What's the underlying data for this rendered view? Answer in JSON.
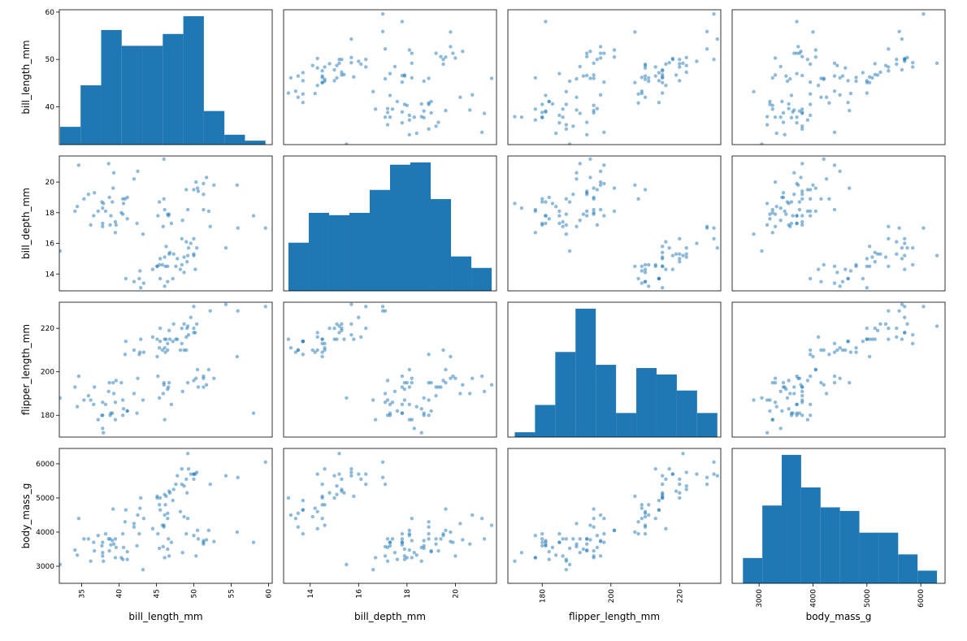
{
  "chart_data": {
    "type": "scatter_matrix",
    "color": "#1f77b4",
    "point_alpha": 0.5,
    "columns": [
      "bill_length_mm",
      "bill_depth_mm",
      "flipper_length_mm",
      "body_mass_g"
    ],
    "axes": [
      {
        "lim": [
          32.0,
          60.5
        ],
        "xticks": [
          35,
          40,
          45,
          50,
          55,
          60
        ],
        "yticks": [
          40,
          50,
          60
        ]
      },
      {
        "lim": [
          12.9,
          21.7
        ],
        "xticks": [
          14,
          16,
          18,
          20
        ],
        "yticks": [
          14,
          16,
          18,
          20
        ]
      },
      {
        "lim": [
          170,
          232
        ],
        "xticks": [
          180,
          200,
          220
        ],
        "yticks": [
          180,
          200,
          220
        ]
      },
      {
        "lim": [
          2500,
          6450
        ],
        "xticks": [
          3000,
          4000,
          5000,
          6000
        ],
        "yticks": [
          3000,
          4000,
          5000,
          6000
        ]
      }
    ],
    "hist": [
      {
        "bins": [
          32.1,
          34.85,
          37.6,
          40.35,
          43.1,
          45.85,
          48.6,
          51.35,
          54.1,
          56.85,
          59.6
        ],
        "counts": [
          9,
          30,
          58,
          50,
          50,
          56,
          65,
          17,
          5,
          2
        ]
      },
      {
        "bins": [
          13.1,
          13.94,
          14.78,
          15.62,
          16.46,
          17.3,
          18.14,
          18.98,
          19.82,
          20.66,
          21.5
        ],
        "counts": [
          21,
          34,
          33,
          34,
          44,
          55,
          56,
          40,
          15,
          10
        ]
      },
      {
        "bins": [
          172,
          177.9,
          183.8,
          189.7,
          195.6,
          201.5,
          207.4,
          213.3,
          219.2,
          225.1,
          231
        ],
        "counts": [
          3,
          20,
          53,
          80,
          45,
          15,
          43,
          39,
          29,
          15
        ]
      },
      {
        "bins": [
          2700,
          3060,
          3420,
          3780,
          4140,
          4500,
          4860,
          5220,
          5580,
          5940,
          6300
        ],
        "counts": [
          14,
          43,
          71,
          53,
          42,
          40,
          28,
          28,
          16,
          7
        ]
      }
    ],
    "rows": [
      [
        39.1,
        18.7,
        181,
        3750
      ],
      [
        39.5,
        17.4,
        186,
        3800
      ],
      [
        40.3,
        18.0,
        195,
        3250
      ],
      [
        36.7,
        19.3,
        193,
        3450
      ],
      [
        39.3,
        20.6,
        190,
        3650
      ],
      [
        38.9,
        17.8,
        181,
        3625
      ],
      [
        39.2,
        19.6,
        195,
        4675
      ],
      [
        34.1,
        18.1,
        193,
        3475
      ],
      [
        42.0,
        20.2,
        190,
        4250
      ],
      [
        37.8,
        17.1,
        186,
        3300
      ],
      [
        37.8,
        17.3,
        180,
        3700
      ],
      [
        41.1,
        17.6,
        182,
        3200
      ],
      [
        38.6,
        21.2,
        191,
        3800
      ],
      [
        34.6,
        21.1,
        198,
        4400
      ],
      [
        36.6,
        17.8,
        185,
        3700
      ],
      [
        38.7,
        19.0,
        195,
        3450
      ],
      [
        42.5,
        20.7,
        197,
        4500
      ],
      [
        34.4,
        18.4,
        184,
        3325
      ],
      [
        46.0,
        21.5,
        194,
        4200
      ],
      [
        37.8,
        18.3,
        174,
        3400
      ],
      [
        37.7,
        18.7,
        180,
        3600
      ],
      [
        35.9,
        19.2,
        189,
        3800
      ],
      [
        38.2,
        18.1,
        185,
        3950
      ],
      [
        38.8,
        17.2,
        180,
        3800
      ],
      [
        35.3,
        18.9,
        187,
        3800
      ],
      [
        40.6,
        18.6,
        183,
        3550
      ],
      [
        40.5,
        17.9,
        187,
        3200
      ],
      [
        37.9,
        18.6,
        172,
        3150
      ],
      [
        40.5,
        18.9,
        180,
        3950
      ],
      [
        39.5,
        16.7,
        178,
        3250
      ],
      [
        37.2,
        18.1,
        178,
        3900
      ],
      [
        39.6,
        17.2,
        196,
        3550
      ],
      [
        32.1,
        15.5,
        188,
        3050
      ],
      [
        41.1,
        19.0,
        182,
        3425
      ],
      [
        36.2,
        17.2,
        187,
        3150
      ],
      [
        40.8,
        18.9,
        208,
        4300
      ],
      [
        46.5,
        17.9,
        192,
        3500
      ],
      [
        50.0,
        19.5,
        196,
        3900
      ],
      [
        51.3,
        19.2,
        193,
        3650
      ],
      [
        45.4,
        18.7,
        188,
        3525
      ],
      [
        52.7,
        19.8,
        197,
        3725
      ],
      [
        45.2,
        17.8,
        198,
        3950
      ],
      [
        46.1,
        18.2,
        178,
        3250
      ],
      [
        51.3,
        18.2,
        197,
        3750
      ],
      [
        46.0,
        18.9,
        195,
        4150
      ],
      [
        51.3,
        19.9,
        198,
        3700
      ],
      [
        46.6,
        17.8,
        193,
        3800
      ],
      [
        51.7,
        20.3,
        194,
        3775
      ],
      [
        47.0,
        17.3,
        185,
        3700
      ],
      [
        52.0,
        18.1,
        201,
        4050
      ],
      [
        45.9,
        17.1,
        190,
        3575
      ],
      [
        50.5,
        19.6,
        201,
        4050
      ],
      [
        50.3,
        20.0,
        197,
        3300
      ],
      [
        58.0,
        17.8,
        181,
        3700
      ],
      [
        49.2,
        18.2,
        195,
        4400
      ],
      [
        42.4,
        17.3,
        181,
        3600
      ],
      [
        48.5,
        17.5,
        191,
        3400
      ],
      [
        43.2,
        16.6,
        187,
        2900
      ],
      [
        50.6,
        19.4,
        193,
        3800
      ],
      [
        46.7,
        17.9,
        195,
        3300
      ],
      [
        55.8,
        19.8,
        207,
        4000
      ],
      [
        49.0,
        19.5,
        210,
        3950
      ],
      [
        46.1,
        13.2,
        211,
        4500
      ],
      [
        50.0,
        16.3,
        230,
        5700
      ],
      [
        48.7,
        14.1,
        210,
        4450
      ],
      [
        50.0,
        15.2,
        218,
        5700
      ],
      [
        47.6,
        14.5,
        215,
        5400
      ],
      [
        46.5,
        13.5,
        210,
        4550
      ],
      [
        45.4,
        14.6,
        211,
        4800
      ],
      [
        46.7,
        15.3,
        219,
        5200
      ],
      [
        43.3,
        13.4,
        209,
        4400
      ],
      [
        46.8,
        15.4,
        215,
        5150
      ],
      [
        40.9,
        13.7,
        214,
        4650
      ],
      [
        49.0,
        16.1,
        216,
        5550
      ],
      [
        45.5,
        13.7,
        214,
        4650
      ],
      [
        48.4,
        14.6,
        213,
        5850
      ],
      [
        45.8,
        14.6,
        210,
        4200
      ],
      [
        49.3,
        15.7,
        217,
        5850
      ],
      [
        42.0,
        13.5,
        210,
        4150
      ],
      [
        49.2,
        15.2,
        221,
        6300
      ],
      [
        46.2,
        14.5,
        209,
        4800
      ],
      [
        48.7,
        15.1,
        222,
        5350
      ],
      [
        50.2,
        14.3,
        218,
        5700
      ],
      [
        45.1,
        14.5,
        215,
        5000
      ],
      [
        46.5,
        14.5,
        213,
        4400
      ],
      [
        46.3,
        15.8,
        215,
        5050
      ],
      [
        42.9,
        13.1,
        215,
        5000
      ],
      [
        46.1,
        15.1,
        215,
        5100
      ],
      [
        44.5,
        14.3,
        216,
        4100
      ],
      [
        47.8,
        15.0,
        215,
        5650
      ],
      [
        48.2,
        14.3,
        210,
        4600
      ],
      [
        50.0,
        15.3,
        220,
        5550
      ],
      [
        47.3,
        15.3,
        222,
        5250
      ],
      [
        42.8,
        14.2,
        209,
        4700
      ],
      [
        45.1,
        14.5,
        207,
        5050
      ],
      [
        59.6,
        17.0,
        230,
        6050
      ],
      [
        49.1,
        14.8,
        220,
        5150
      ],
      [
        48.4,
        16.3,
        220,
        5400
      ],
      [
        42.7,
        13.7,
        208,
        3950
      ],
      [
        49.6,
        16.0,
        225,
        5700
      ],
      [
        45.5,
        15.0,
        220,
        5000
      ],
      [
        55.9,
        17.0,
        228,
        5600
      ],
      [
        54.3,
        15.7,
        231,
        5650
      ],
      [
        47.2,
        13.7,
        214,
        4925
      ],
      [
        50.4,
        15.7,
        222,
        5750
      ],
      [
        52.2,
        17.1,
        228,
        5400
      ]
    ]
  }
}
